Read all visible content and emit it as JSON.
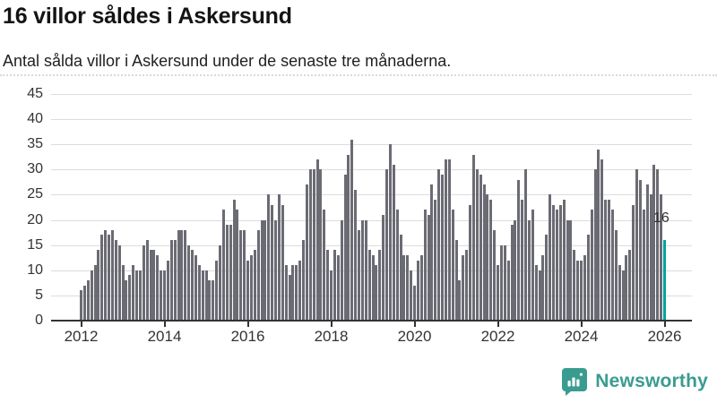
{
  "header": {
    "title": "16 villor såldes i Askersund",
    "subtitle": "Antal sålda villor i Askersund under de senaste tre månaderna."
  },
  "annotation": {
    "label": "16"
  },
  "footer": {
    "brand": "Newsworthy"
  },
  "colors": {
    "bar": "#6b6b74",
    "highlight": "#00a2a2",
    "brand_teal": "#3a9c90",
    "grid": "#dcdcdc",
    "axis": "#333333"
  },
  "chart_data": {
    "type": "bar",
    "title": "16 villor såldes i Askersund",
    "subtitle": "Antal sålda villor i Askersund under de senaste tre månaderna.",
    "frequency": "monthly",
    "x_start": "2012-01",
    "x_end": "2026-01",
    "ylim": [
      0,
      45
    ],
    "yticks": [
      0,
      5,
      10,
      15,
      20,
      25,
      30,
      35,
      40,
      45
    ],
    "xtick_labels": [
      "2012",
      "2014",
      "2016",
      "2018",
      "2020",
      "2022",
      "2024",
      "2026"
    ],
    "grid": true,
    "legend": false,
    "highlight_last_value": 16,
    "highlight_last_label": "16",
    "values": [
      6,
      7,
      8,
      10,
      11,
      14,
      17,
      18,
      17,
      18,
      16,
      15,
      11,
      8,
      9,
      11,
      10,
      10,
      15,
      16,
      14,
      14,
      13,
      10,
      10,
      12,
      16,
      16,
      18,
      18,
      18,
      15,
      14,
      13,
      11,
      10,
      10,
      8,
      8,
      12,
      15,
      22,
      19,
      19,
      24,
      22,
      18,
      18,
      12,
      13,
      14,
      18,
      20,
      20,
      25,
      23,
      20,
      25,
      23,
      11,
      9,
      11,
      11,
      12,
      16,
      27,
      30,
      30,
      32,
      30,
      22,
      14,
      10,
      14,
      13,
      20,
      29,
      33,
      36,
      26,
      18,
      20,
      20,
      14,
      13,
      11,
      14,
      21,
      30,
      35,
      31,
      22,
      17,
      13,
      13,
      10,
      7,
      12,
      13,
      22,
      21,
      27,
      24,
      30,
      29,
      32,
      32,
      22,
      16,
      8,
      13,
      14,
      23,
      33,
      30,
      29,
      27,
      25,
      24,
      18,
      11,
      15,
      15,
      12,
      19,
      20,
      28,
      24,
      30,
      20,
      22,
      11,
      10,
      13,
      17,
      25,
      23,
      22,
      23,
      24,
      20,
      20,
      14,
      12,
      12,
      13,
      17,
      22,
      30,
      34,
      32,
      24,
      24,
      22,
      18,
      11,
      10,
      13,
      14,
      23,
      30,
      28,
      22,
      27,
      25,
      31,
      30,
      25,
      16
    ]
  }
}
